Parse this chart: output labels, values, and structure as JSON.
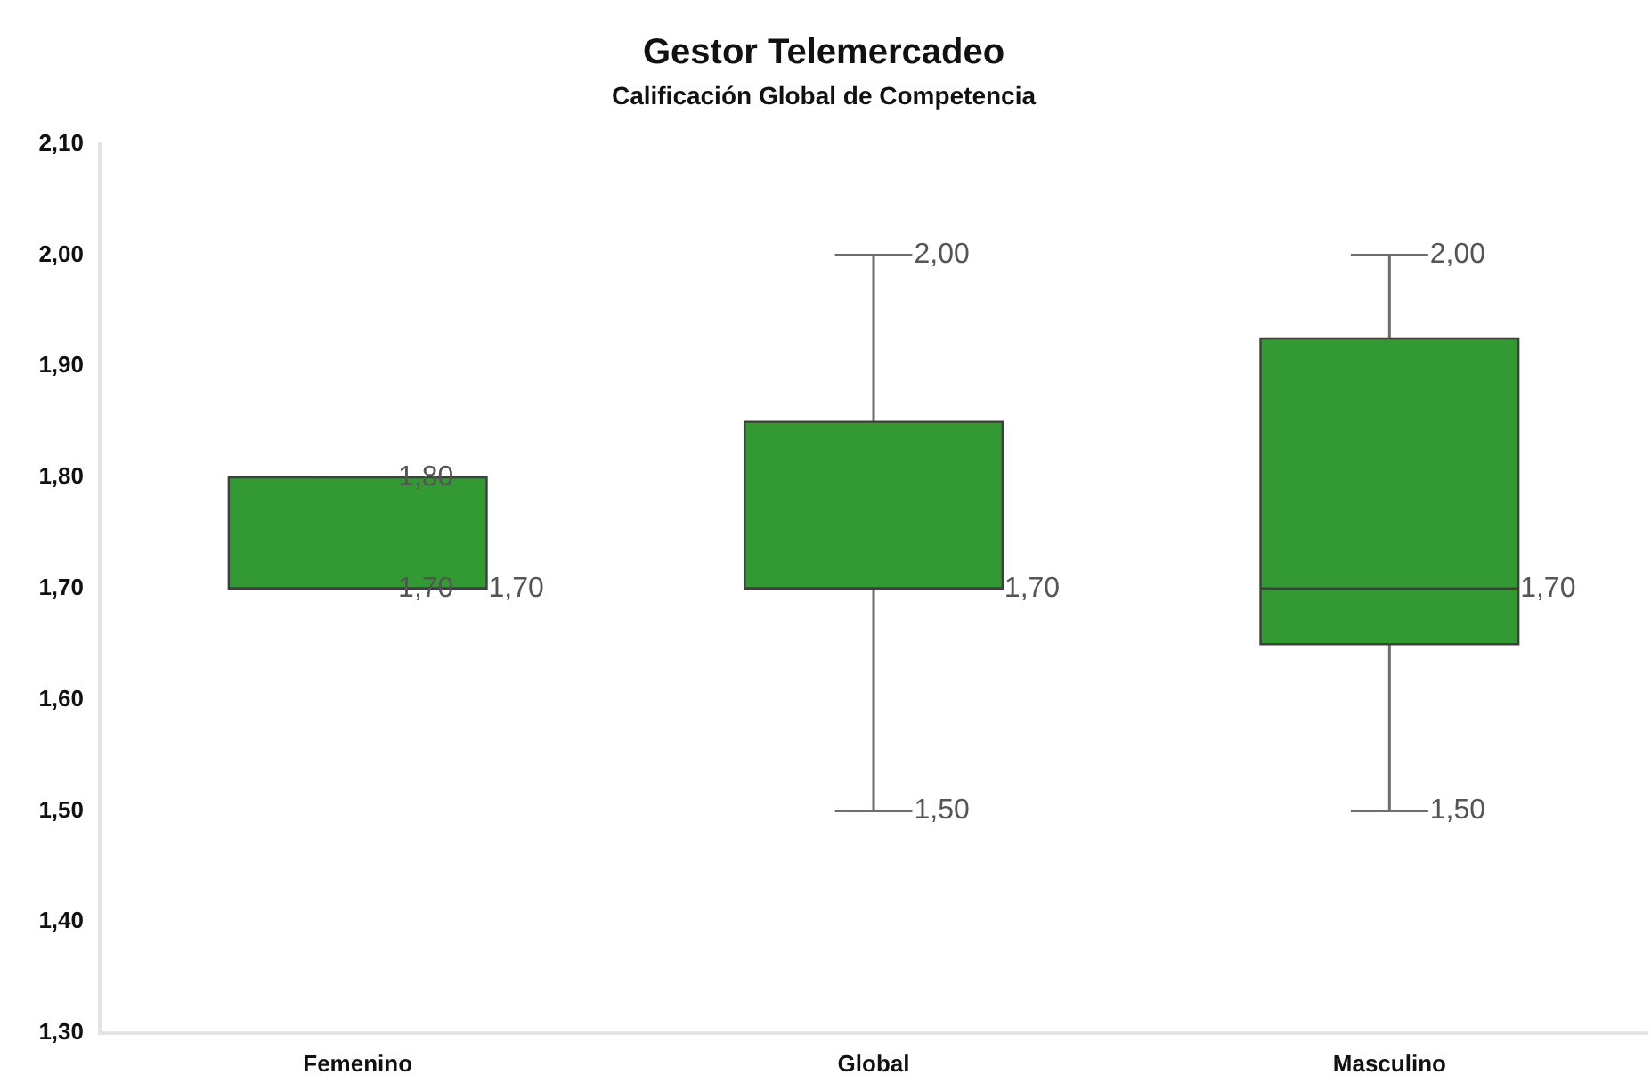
{
  "chart_data": {
    "type": "box",
    "title": "Gestor Telemercadeo",
    "subtitle": "Calificación Global de Competencia",
    "categories": [
      "Femenino",
      "Global",
      "Masculino"
    ],
    "color": "#339933",
    "boxes": [
      {
        "low": 1.7,
        "q1": 1.7,
        "median": 1.7,
        "q3": 1.8,
        "high": 1.8
      },
      {
        "low": 1.5,
        "q1": 1.7,
        "median": 1.7,
        "q3": 1.85,
        "high": 2.0
      },
      {
        "low": 1.5,
        "q1": 1.65,
        "median": 1.7,
        "q3": 1.925,
        "high": 2.0
      }
    ],
    "ylim": [
      1.3,
      2.1
    ],
    "yticks": [
      {
        "value": 1.3,
        "label": "1,30"
      },
      {
        "value": 1.4,
        "label": "1,40"
      },
      {
        "value": 1.5,
        "label": "1,50"
      },
      {
        "value": 1.6,
        "label": "1,60"
      },
      {
        "value": 1.7,
        "label": "1,70"
      },
      {
        "value": 1.8,
        "label": "1,80"
      },
      {
        "value": 1.9,
        "label": "1,90"
      },
      {
        "value": 2.0,
        "label": "2,00"
      },
      {
        "value": 2.1,
        "label": "2,10"
      }
    ],
    "annotations": [
      {
        "text": "1,80",
        "x": "Femenino",
        "y": 1.8
      },
      {
        "text": "1,70",
        "x": "Femenino",
        "y": 1.7
      },
      {
        "text": "2,00",
        "x": "Global",
        "y": 2.0
      },
      {
        "text": "1,50",
        "x": "Global",
        "y": 1.5
      },
      {
        "text": "2,00",
        "x": "Masculino",
        "y": 2.0
      },
      {
        "text": "1,50",
        "x": "Masculino",
        "y": 1.5
      },
      "1,70",
      "1,70",
      "1,70"
    ]
  }
}
